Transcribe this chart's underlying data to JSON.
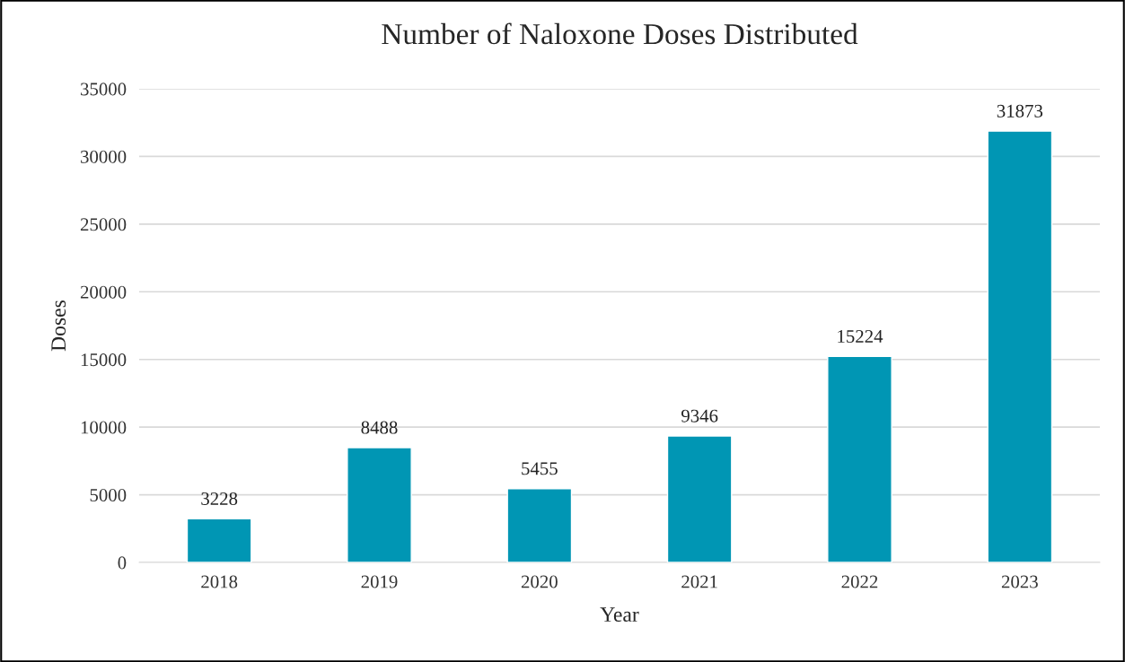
{
  "chart_data": {
    "type": "bar",
    "title": "Number of Naloxone Doses Distributed",
    "xlabel": "Year",
    "ylabel": "Doses",
    "categories": [
      "2018",
      "2019",
      "2020",
      "2021",
      "2022",
      "2023"
    ],
    "values": [
      3228,
      8488,
      5455,
      9346,
      15224,
      31873
    ],
    "color": "#0096b4",
    "ylim": [
      0,
      35000
    ],
    "yticks": [
      0,
      5000,
      10000,
      15000,
      20000,
      25000,
      30000,
      35000
    ],
    "grid": "y",
    "data_labels": true
  }
}
